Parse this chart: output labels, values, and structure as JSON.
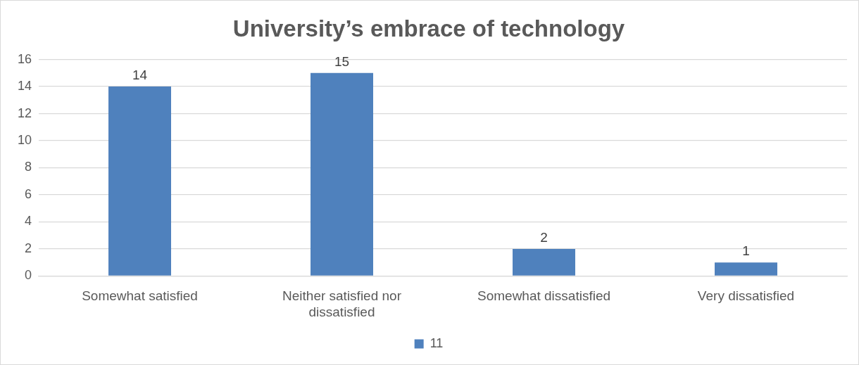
{
  "chart_data": {
    "type": "bar",
    "title": "University’s embrace of technology",
    "categories": [
      "Somewhat satisfied",
      "Neither satisfied nor dissatisfied",
      "Somewhat dissatisfied",
      "Very dissatisfied"
    ],
    "series": [
      {
        "name": "11",
        "color": "#4f81bd",
        "values": [
          14,
          15,
          2,
          1
        ]
      }
    ],
    "ylim": [
      0,
      16
    ],
    "yticks": [
      0,
      2,
      4,
      6,
      8,
      10,
      12,
      14,
      16
    ],
    "grid": "y",
    "legend": "bottom",
    "data_labels": true
  }
}
